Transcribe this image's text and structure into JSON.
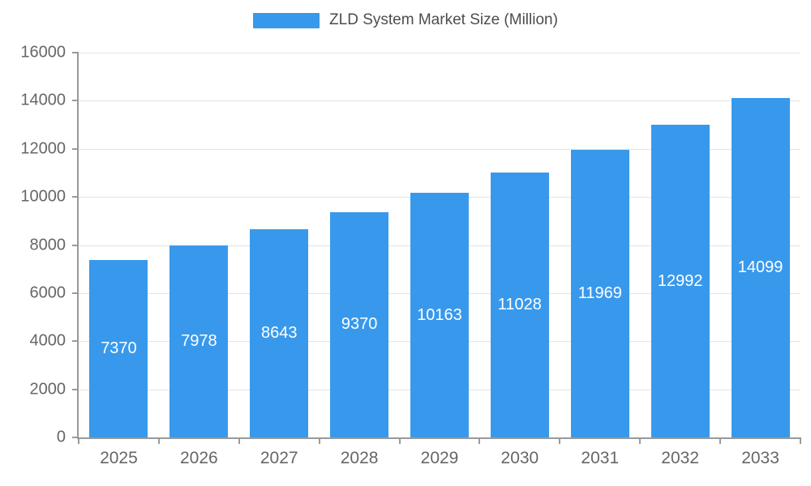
{
  "chart_data": {
    "type": "bar",
    "title": "ZLD System Market Size (Million)",
    "categories": [
      "2025",
      "2026",
      "2027",
      "2028",
      "2029",
      "2030",
      "2031",
      "2032",
      "2033"
    ],
    "values": [
      7370,
      7978,
      8643,
      9370,
      10163,
      11028,
      11969,
      12992,
      14099
    ],
    "xlabel": "",
    "ylabel": "",
    "ylim": [
      0,
      16000
    ],
    "ytick_step": 2000,
    "grid": true,
    "legend_position": "top",
    "bar_color": "#3899EC",
    "value_label_color": "#ffffff",
    "axis_text_color": "#666666",
    "grid_color": "#e3e3e3",
    "axis_line_color": "#999999"
  }
}
